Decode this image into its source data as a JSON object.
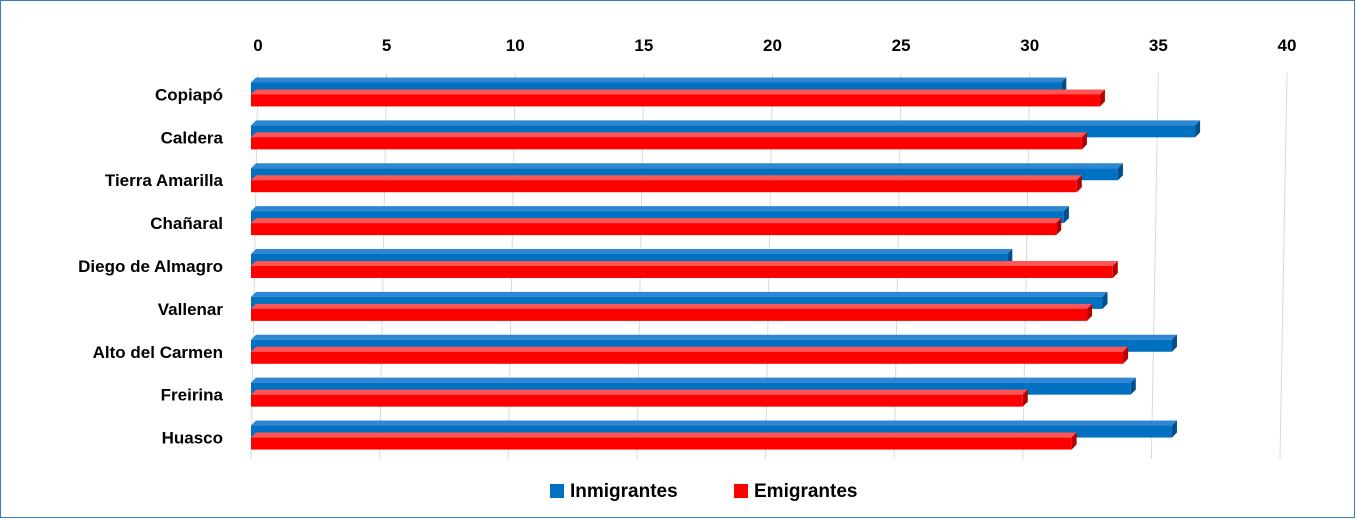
{
  "chart_data": {
    "type": "bar",
    "orientation": "horizontal",
    "categories": [
      "Copiapó",
      "Caldera",
      "Tierra Amarilla",
      "Chañaral",
      "Diego de Almagro",
      "Vallenar",
      "Alto del Carmen",
      "Freirina",
      "Huasco"
    ],
    "series": [
      {
        "name": "Inmigrantes",
        "color": "#0070c0",
        "values": [
          31.5,
          36.7,
          33.7,
          31.6,
          29.4,
          33.1,
          35.8,
          34.2,
          35.8
        ]
      },
      {
        "name": "Emigrantes",
        "color": "#ff0000",
        "values": [
          33.0,
          32.3,
          32.1,
          31.3,
          33.5,
          32.5,
          33.9,
          30.0,
          31.9
        ]
      }
    ],
    "xticks": [
      "0",
      "5",
      "10",
      "15",
      "20",
      "25",
      "30",
      "35",
      "40"
    ],
    "xlim": [
      0,
      40
    ],
    "title": "",
    "xlabel": "",
    "ylabel": "",
    "grid": true,
    "legend_position": "bottom"
  }
}
